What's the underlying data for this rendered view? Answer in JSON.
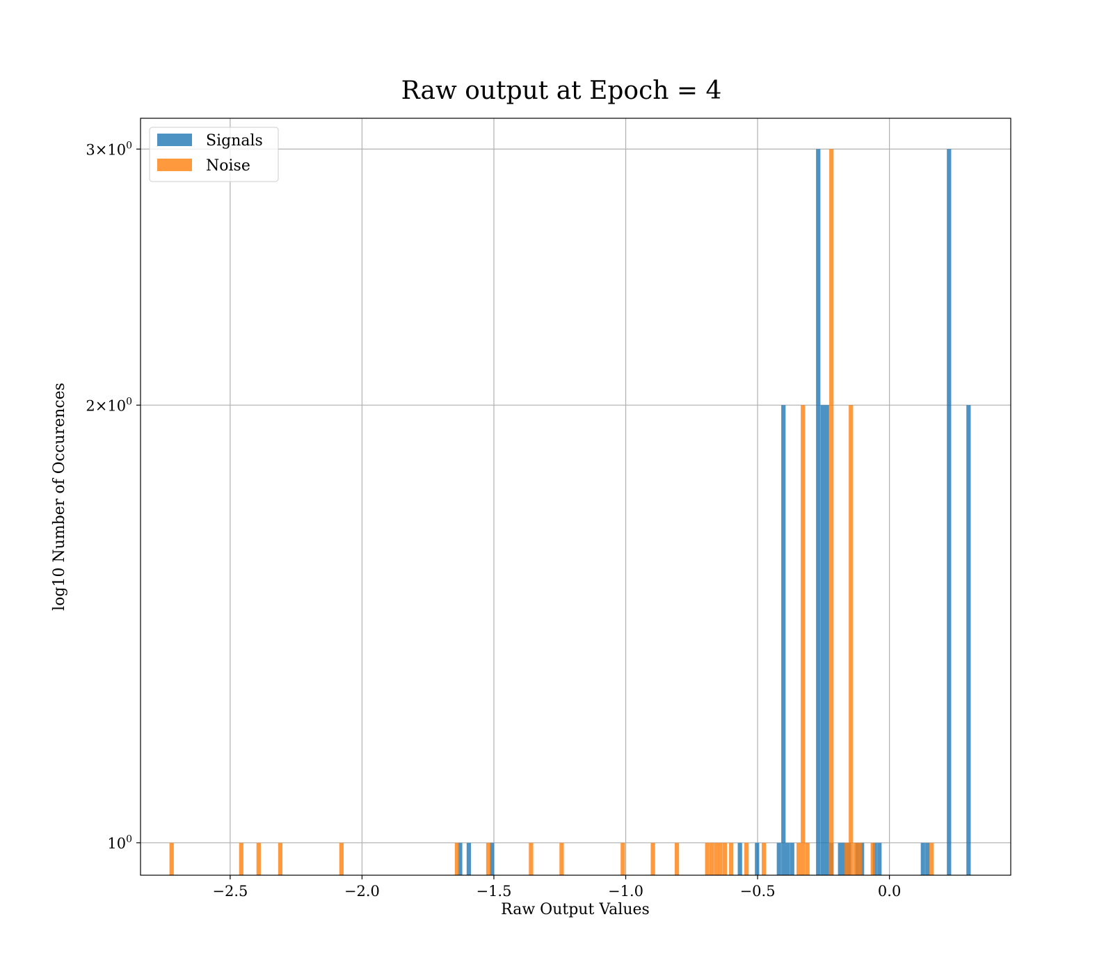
{
  "chart_data": {
    "type": "bar",
    "title": "Raw output at Epoch = 4",
    "xlabel": "Raw Output Values",
    "ylabel": "log10 Number of Occurences",
    "xlim": [
      -2.84,
      0.46
    ],
    "y_scale": "log",
    "ylim": [
      0.95,
      3.15
    ],
    "x_ticks": [
      -2.5,
      -2.0,
      -1.5,
      -1.0,
      -0.5,
      0.0
    ],
    "x_tick_labels": [
      "−2.5",
      "−2.0",
      "−1.5",
      "−1.0",
      "−0.5",
      "0.0"
    ],
    "y_ticks": [
      1,
      2,
      3
    ],
    "y_tick_labels": [
      {
        "mantissa": "",
        "base": "10",
        "exp": "0"
      },
      {
        "mantissa": "2×",
        "base": "10",
        "exp": "0"
      },
      {
        "mantissa": "3×",
        "base": "10",
        "exp": "0"
      }
    ],
    "grid": true,
    "legend_position": "upper-left",
    "bin_width": 0.0165,
    "series": [
      {
        "name": "Signals",
        "color": "#1f77b4",
        "opacity": 0.8,
        "x": [
          -1.628,
          -1.595,
          -1.507,
          -0.567,
          -0.502,
          -0.419,
          -0.402,
          -0.386,
          -0.369,
          -0.27,
          -0.253,
          -0.237,
          -0.22,
          -0.187,
          -0.171,
          -0.154,
          -0.121,
          -0.104,
          -0.055,
          -0.038,
          0.127,
          0.144,
          0.226,
          0.3
        ],
        "values": [
          1,
          1,
          1,
          1,
          1,
          1,
          2,
          1,
          1,
          3,
          2,
          2,
          1,
          1,
          1,
          1,
          1,
          1,
          1,
          1,
          1,
          1,
          3,
          2
        ]
      },
      {
        "name": "Noise",
        "color": "#ff7f0e",
        "opacity": 0.8,
        "x": [
          -2.722,
          -2.458,
          -2.392,
          -2.31,
          -2.078,
          -1.64,
          -1.521,
          -1.359,
          -1.243,
          -1.011,
          -0.897,
          -0.806,
          -0.691,
          -0.674,
          -0.657,
          -0.641,
          -0.624,
          -0.6,
          -0.542,
          -0.476,
          -0.344,
          -0.328,
          -0.311,
          -0.22,
          -0.162,
          -0.146,
          -0.129,
          -0.113,
          -0.063,
          0.16
        ],
        "values": [
          1,
          1,
          1,
          1,
          1,
          1,
          1,
          1,
          1,
          1,
          1,
          1,
          1,
          1,
          1,
          1,
          1,
          1,
          1,
          1,
          1,
          2,
          1,
          3,
          1,
          2,
          1,
          1,
          1,
          1
        ]
      }
    ]
  }
}
